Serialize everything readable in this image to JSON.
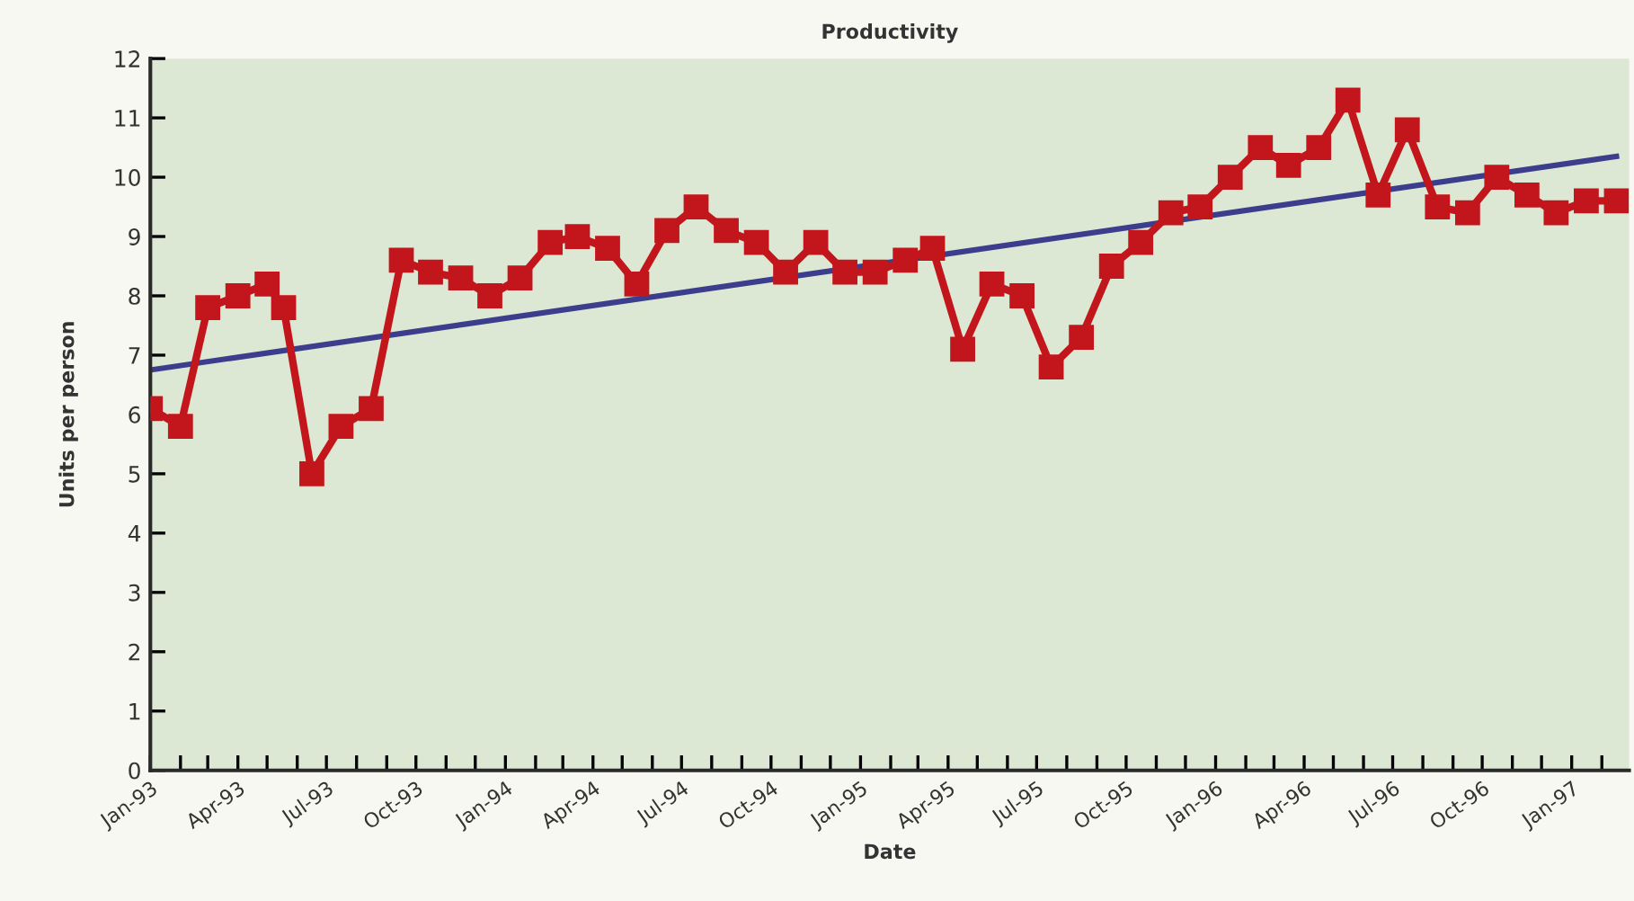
{
  "chart_data": {
    "type": "line",
    "title": "Productivity",
    "xlabel": "Date",
    "ylabel": "Units per person",
    "xlim": [
      "1993-01-01",
      "1997-03-01"
    ],
    "xticks": [
      {
        "value": "1993-01-01",
        "label": "Jan-93"
      },
      {
        "value": "1993-02-01",
        "label": null
      },
      {
        "value": "1993-03-01",
        "label": null
      },
      {
        "value": "1993-04-01",
        "label": "Apr-93"
      },
      {
        "value": "1993-05-01",
        "label": null
      },
      {
        "value": "1993-06-01",
        "label": null
      },
      {
        "value": "1993-07-01",
        "label": "Jul-93"
      },
      {
        "value": "1993-08-01",
        "label": null
      },
      {
        "value": "1993-09-01",
        "label": null
      },
      {
        "value": "1993-10-01",
        "label": "Oct-93"
      },
      {
        "value": "1993-11-01",
        "label": null
      },
      {
        "value": "1993-12-01",
        "label": null
      },
      {
        "value": "1994-01-01",
        "label": "Jan-94"
      },
      {
        "value": "1994-02-01",
        "label": null
      },
      {
        "value": "1994-03-01",
        "label": null
      },
      {
        "value": "1994-04-01",
        "label": "Apr-94"
      },
      {
        "value": "1994-05-01",
        "label": null
      },
      {
        "value": "1994-06-01",
        "label": null
      },
      {
        "value": "1994-07-01",
        "label": "Jul-94"
      },
      {
        "value": "1994-08-01",
        "label": null
      },
      {
        "value": "1994-09-01",
        "label": null
      },
      {
        "value": "1994-10-01",
        "label": "Oct-94"
      },
      {
        "value": "1994-11-01",
        "label": null
      },
      {
        "value": "1994-12-01",
        "label": null
      },
      {
        "value": "1995-01-01",
        "label": "Jan-95"
      },
      {
        "value": "1995-02-01",
        "label": null
      },
      {
        "value": "1995-03-01",
        "label": null
      },
      {
        "value": "1995-04-01",
        "label": "Apr-95"
      },
      {
        "value": "1995-05-01",
        "label": null
      },
      {
        "value": "1995-06-01",
        "label": null
      },
      {
        "value": "1995-07-01",
        "label": "Jul-95"
      },
      {
        "value": "1995-08-01",
        "label": null
      },
      {
        "value": "1995-09-01",
        "label": null
      },
      {
        "value": "1995-10-01",
        "label": "Oct-95"
      },
      {
        "value": "1995-11-01",
        "label": null
      },
      {
        "value": "1995-12-01",
        "label": null
      },
      {
        "value": "1996-01-01",
        "label": "Jan-96"
      },
      {
        "value": "1996-02-01",
        "label": null
      },
      {
        "value": "1996-03-01",
        "label": null
      },
      {
        "value": "1996-04-01",
        "label": "Apr-96"
      },
      {
        "value": "1996-05-01",
        "label": null
      },
      {
        "value": "1996-06-01",
        "label": null
      },
      {
        "value": "1996-07-01",
        "label": "Jul-96"
      },
      {
        "value": "1996-08-01",
        "label": null
      },
      {
        "value": "1996-09-01",
        "label": null
      },
      {
        "value": "1996-10-01",
        "label": "Oct-96"
      },
      {
        "value": "1996-11-01",
        "label": null
      },
      {
        "value": "1996-12-01",
        "label": null
      },
      {
        "value": "1997-01-01",
        "label": "Jan-97"
      },
      {
        "value": "1997-02-01",
        "label": null
      }
    ],
    "ylim": [
      0,
      12
    ],
    "yticks": [
      0,
      1,
      2,
      3,
      4,
      5,
      6,
      7,
      8,
      9,
      10,
      11,
      12
    ],
    "grid": false,
    "legend": false,
    "series": [
      {
        "color": "#c3161c",
        "marker": "square",
        "line_style": "solid",
        "x": [
          "1993-01-01",
          "1993-02-01",
          "1993-03-01",
          "1993-04-01",
          "1993-05-01",
          "1993-05-18",
          "1993-06-16",
          "1993-07-16",
          "1993-08-16",
          "1993-09-16",
          "1993-10-16",
          "1993-11-16",
          "1993-12-16",
          "1994-01-16",
          "1994-02-16",
          "1994-03-16",
          "1994-04-16",
          "1994-05-16",
          "1994-06-16",
          "1994-07-16",
          "1994-08-16",
          "1994-09-16",
          "1994-10-16",
          "1994-11-16",
          "1994-12-16",
          "1995-01-16",
          "1995-02-16",
          "1995-03-16",
          "1995-04-16",
          "1995-05-16",
          "1995-06-16",
          "1995-07-16",
          "1995-08-16",
          "1995-09-16",
          "1995-10-16",
          "1995-11-16",
          "1995-12-16",
          "1996-01-16",
          "1996-02-16",
          "1996-03-16",
          "1996-04-16",
          "1996-05-16",
          "1996-06-16",
          "1996-07-16",
          "1996-08-16",
          "1996-09-16",
          "1996-10-16",
          "1996-11-16",
          "1996-12-16",
          "1997-01-16",
          "1997-02-16"
        ],
        "values": [
          6.1,
          5.8,
          7.8,
          8.0,
          8.2,
          7.8,
          5.0,
          5.8,
          6.1,
          8.6,
          8.4,
          8.3,
          8.0,
          8.3,
          8.9,
          9.0,
          8.8,
          8.2,
          9.1,
          9.5,
          9.1,
          8.9,
          8.4,
          8.9,
          8.4,
          8.4,
          8.6,
          8.8,
          7.1,
          8.2,
          8.0,
          6.8,
          7.3,
          8.5,
          8.9,
          9.4,
          9.5,
          10.0,
          10.5,
          10.2,
          10.5,
          11.3,
          9.7,
          10.8,
          9.5,
          9.4,
          10.0,
          9.7,
          9.4,
          9.6,
          9.6
        ]
      },
      {
        "color": "#3c3d8c",
        "marker": "none",
        "line_style": "solid",
        "x": [
          "1993-01-01",
          "1997-02-16"
        ],
        "values": [
          6.75,
          10.35
        ]
      }
    ]
  }
}
